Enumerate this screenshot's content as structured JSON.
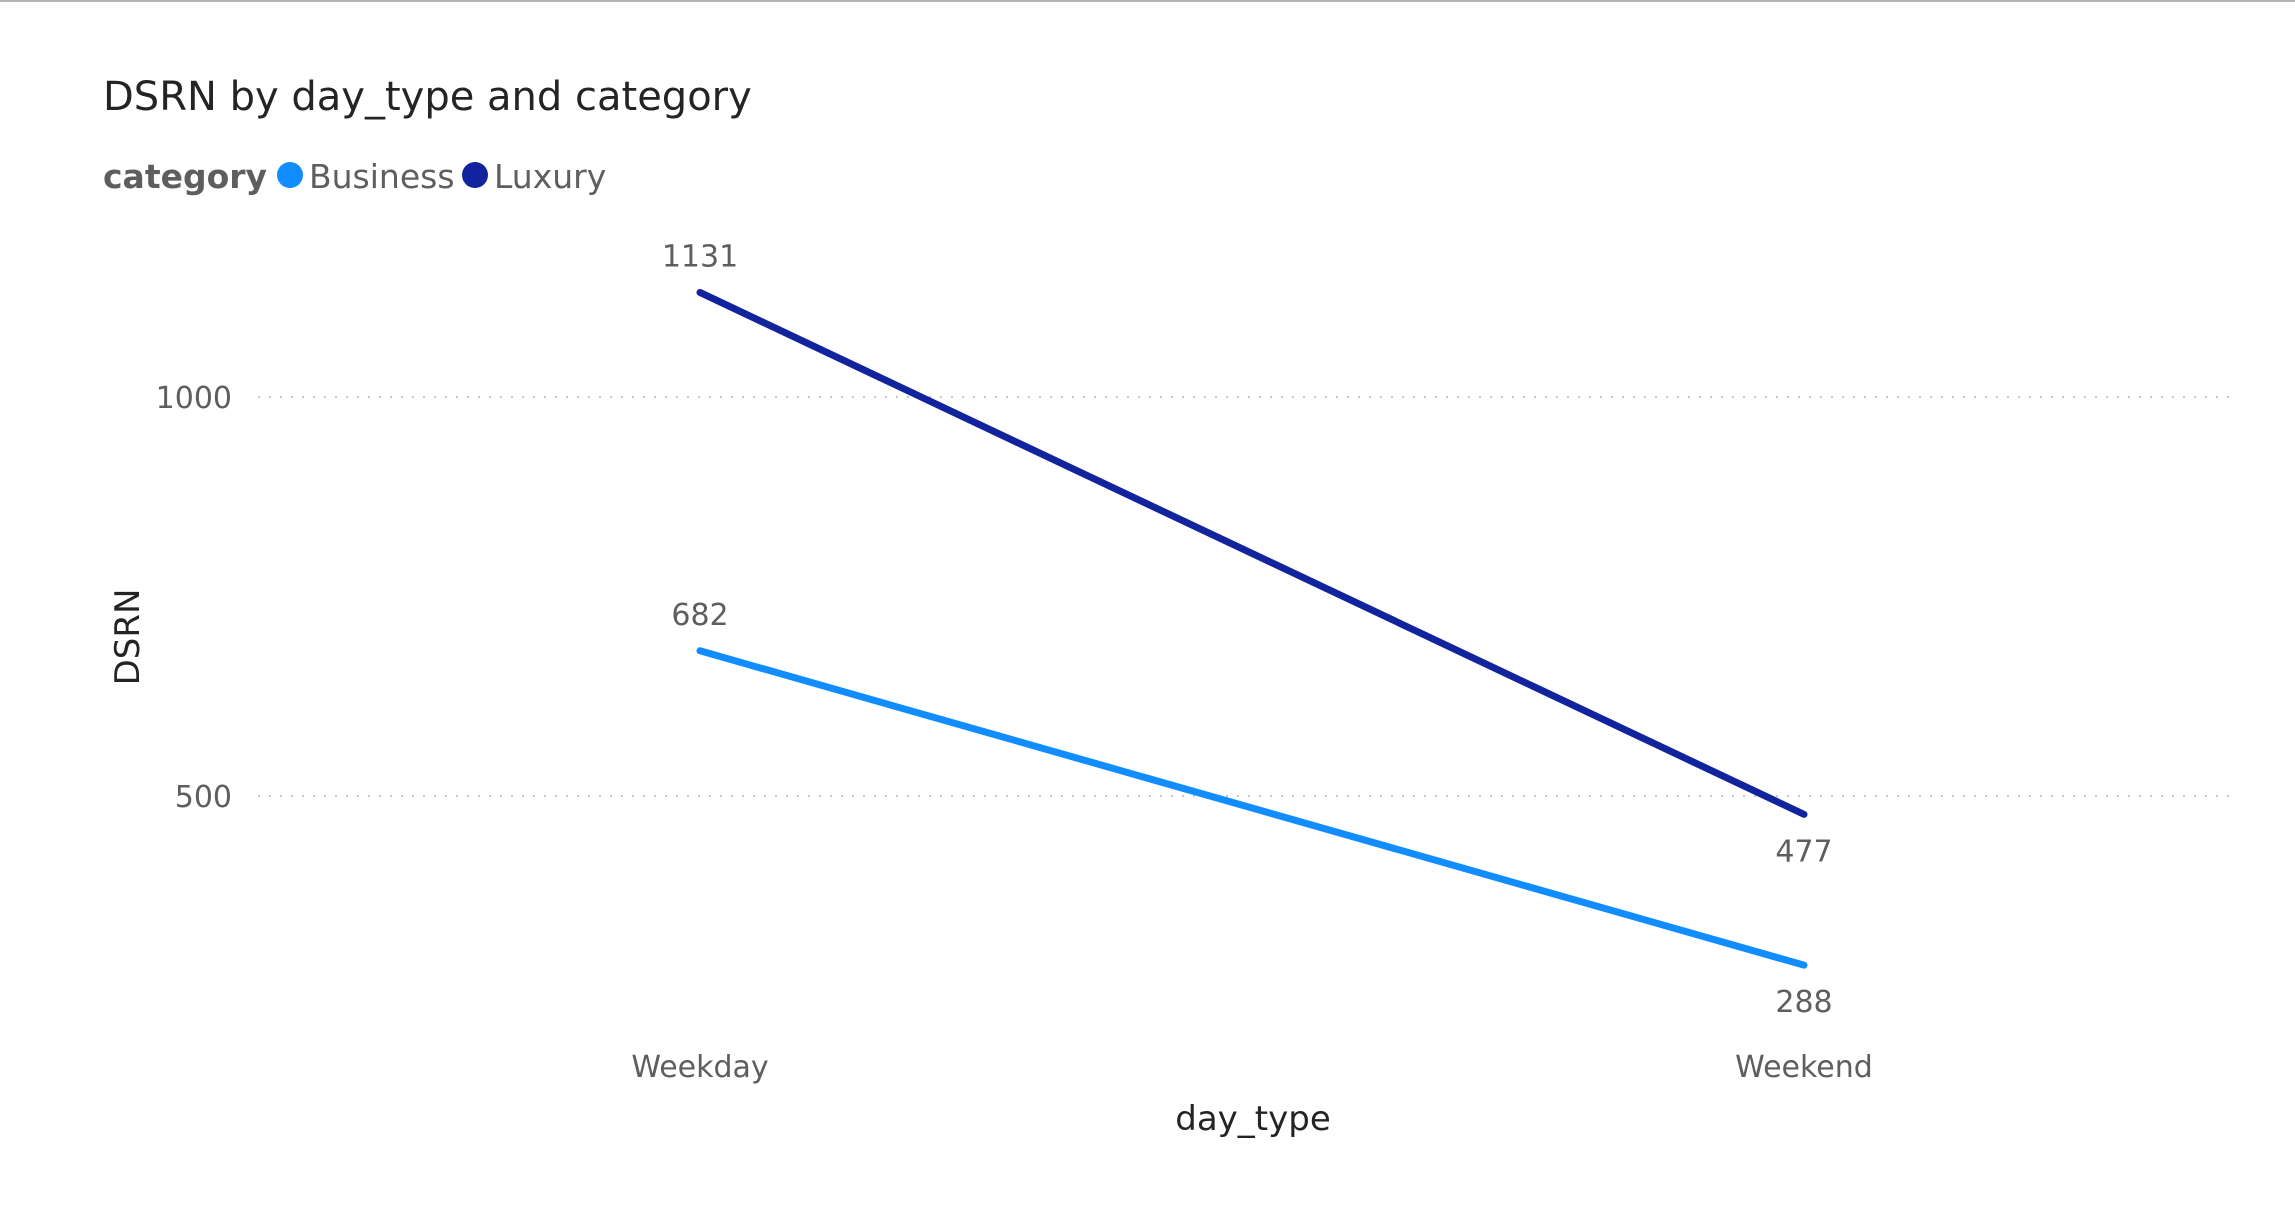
{
  "chart_data": {
    "type": "line",
    "title": "DSRN by day_type and category",
    "legend": {
      "title": "category",
      "placement": "top-left"
    },
    "xlabel": "day_type",
    "ylabel": "DSRN",
    "categories": [
      "Weekday",
      "Weekend"
    ],
    "y_ticks": [
      500,
      1000
    ],
    "ylim": [
      200,
      1250
    ],
    "grid": true,
    "series": [
      {
        "name": "Business",
        "color": "#118dff",
        "values": [
          682,
          288
        ]
      },
      {
        "name": "Luxury",
        "color": "#12239e",
        "values": [
          1131,
          477
        ]
      }
    ]
  }
}
